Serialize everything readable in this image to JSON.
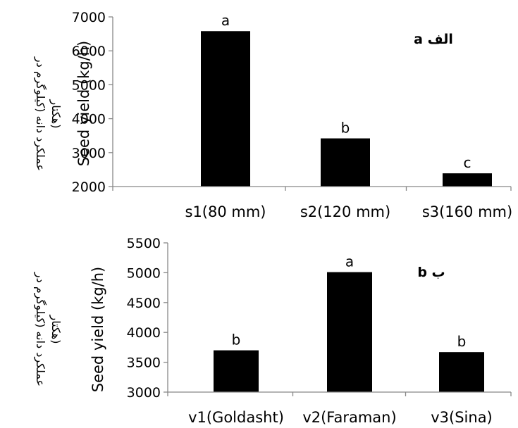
{
  "chart_data": [
    {
      "type": "bar",
      "panel_label": "الف a",
      "ylabel": "Seed yield (kg/h)",
      "ylabel_fa": [
        "عملکرد دانه (کیلوگرم در",
        "هکتار)"
      ],
      "categories": [
        "s1(80 mm)",
        "s2(120 mm)",
        "s3(160 mm)"
      ],
      "values": [
        6580,
        3420,
        2390
      ],
      "significance": [
        "a",
        "b",
        "c"
      ],
      "ylim": [
        2000,
        7000
      ],
      "yticks": [
        "2000",
        "3000",
        "4000",
        "5000",
        "6000",
        "7000"
      ],
      "bar_color": "#000000",
      "grid": false
    },
    {
      "type": "bar",
      "panel_label": "ب b",
      "ylabel": "Seed yield (kg/h)",
      "ylabel_fa": [
        "عملکرد دانه (کیلوگرم در",
        "هکتار)"
      ],
      "categories": [
        "v1(Goldasht)",
        "v2(Faraman)",
        "v3(Sina)"
      ],
      "values": [
        3700,
        5010,
        3670
      ],
      "significance": [
        "b",
        "a",
        "b"
      ],
      "ylim": [
        3000,
        5500
      ],
      "yticks": [
        "3000",
        "3500",
        "4000",
        "4500",
        "5000",
        "5500"
      ],
      "bar_color": "#000000",
      "grid": false
    }
  ]
}
